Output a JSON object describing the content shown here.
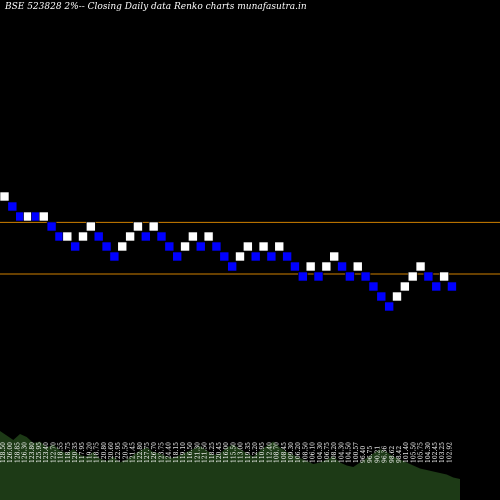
{
  "title": "BSE 523828  2%-- Closing Daily data Renko  charts munafasutra.in",
  "chart_data": {
    "type": "renko",
    "title": "BSE 523828  2%-- Closing Daily data Renko  charts munafasutra.in",
    "brick_colors": {
      "up": "#ffffff",
      "down": "#0000ff"
    },
    "reference_lines": [
      {
        "level": 120.4,
        "color": "#d08000"
      },
      {
        "level": 107.5,
        "color": "#d08000"
      }
    ],
    "bricks": [
      {
        "dir": "up",
        "level": 128.0
      },
      {
        "dir": "down",
        "level": 125.5
      },
      {
        "dir": "down",
        "level": 123.0
      },
      {
        "dir": "up",
        "level": 123.0
      },
      {
        "dir": "down",
        "level": 123.0
      },
      {
        "dir": "up",
        "level": 123.0
      },
      {
        "dir": "down",
        "level": 120.5
      },
      {
        "dir": "down",
        "level": 118.0
      },
      {
        "dir": "up",
        "level": 118.0
      },
      {
        "dir": "down",
        "level": 115.5
      },
      {
        "dir": "up",
        "level": 118.0
      },
      {
        "dir": "up",
        "level": 120.5
      },
      {
        "dir": "down",
        "level": 118.0
      },
      {
        "dir": "down",
        "level": 115.5
      },
      {
        "dir": "down",
        "level": 113.0
      },
      {
        "dir": "up",
        "level": 115.5
      },
      {
        "dir": "up",
        "level": 118.0
      },
      {
        "dir": "up",
        "level": 120.5
      },
      {
        "dir": "down",
        "level": 118.0
      },
      {
        "dir": "up",
        "level": 120.5
      },
      {
        "dir": "down",
        "level": 118.0
      },
      {
        "dir": "down",
        "level": 115.5
      },
      {
        "dir": "down",
        "level": 113.0
      },
      {
        "dir": "up",
        "level": 115.5
      },
      {
        "dir": "up",
        "level": 118.0
      },
      {
        "dir": "down",
        "level": 115.5
      },
      {
        "dir": "up",
        "level": 118.0
      },
      {
        "dir": "down",
        "level": 115.5
      },
      {
        "dir": "down",
        "level": 113.0
      },
      {
        "dir": "down",
        "level": 110.5
      },
      {
        "dir": "up",
        "level": 113.0
      },
      {
        "dir": "up",
        "level": 115.5
      },
      {
        "dir": "down",
        "level": 113.0
      },
      {
        "dir": "up",
        "level": 115.5
      },
      {
        "dir": "down",
        "level": 113.0
      },
      {
        "dir": "up",
        "level": 115.5
      },
      {
        "dir": "down",
        "level": 113.0
      },
      {
        "dir": "down",
        "level": 110.5
      },
      {
        "dir": "down",
        "level": 108.0
      },
      {
        "dir": "up",
        "level": 110.5
      },
      {
        "dir": "down",
        "level": 108.0
      },
      {
        "dir": "up",
        "level": 110.5
      },
      {
        "dir": "up",
        "level": 113.0
      },
      {
        "dir": "down",
        "level": 110.5
      },
      {
        "dir": "down",
        "level": 108.0
      },
      {
        "dir": "up",
        "level": 110.5
      },
      {
        "dir": "down",
        "level": 108.0
      },
      {
        "dir": "down",
        "level": 105.5
      },
      {
        "dir": "down",
        "level": 103.0
      },
      {
        "dir": "down",
        "level": 100.5
      },
      {
        "dir": "up",
        "level": 103.0
      },
      {
        "dir": "up",
        "level": 105.5
      },
      {
        "dir": "up",
        "level": 108.0
      },
      {
        "dir": "up",
        "level": 110.5
      },
      {
        "dir": "down",
        "level": 108.0
      },
      {
        "dir": "down",
        "level": 105.5
      },
      {
        "dir": "up",
        "level": 108.0
      },
      {
        "dir": "down",
        "level": 105.5
      }
    ],
    "x_tick_labels": [
      "128.50",
      "126.00",
      "128.85",
      "126.30",
      "123.80",
      "125.95",
      "123.40",
      "122.70",
      "118.55",
      "118.75",
      "120.35",
      "117.95",
      "119.20",
      "118.75",
      "120.80",
      "120.60",
      "122.95",
      "120.50",
      "121.45",
      "122.80",
      "127.75",
      "126.70",
      "123.75",
      "124.40",
      "118.15",
      "119.10",
      "116.50",
      "121.30",
      "121.50",
      "118.25",
      "120.45",
      "116.00",
      "115.50",
      "113.00",
      "119.35",
      "112.20",
      "110.95",
      "112.40",
      "108.70",
      "108.45",
      "109.30",
      "106.20",
      "108.50",
      "106.10",
      "104.30",
      "106.75",
      "108.20",
      "104.30",
      "104.50",
      "100.57",
      "96.40",
      "96.75",
      "90.21",
      "96.36",
      "98.62",
      "98.42",
      "101.40",
      "105.50",
      "105.75",
      "104.30",
      "102.45",
      "103.25",
      "102.92"
    ],
    "volume": {
      "color": "#1d3a16",
      "relative_levels": [
        0.92,
        0.86,
        0.8,
        0.88,
        0.84,
        0.76,
        0.78,
        0.7,
        0.74,
        0.66,
        0.62,
        0.68,
        0.6,
        0.58,
        0.64,
        0.55,
        0.52,
        0.58,
        0.5,
        0.54,
        0.6,
        0.66,
        0.7,
        0.64,
        0.62,
        0.58,
        0.56,
        0.6,
        0.64,
        0.68,
        0.72,
        0.66,
        0.6,
        0.62,
        0.7,
        0.74,
        0.68,
        0.62,
        0.58,
        0.66,
        0.72,
        0.78,
        0.7,
        0.64,
        0.6,
        0.56,
        0.52,
        0.48,
        0.5,
        0.54,
        0.58,
        0.5,
        0.46,
        0.44,
        0.5,
        0.56,
        0.62,
        0.68,
        0.64,
        0.58,
        0.54,
        0.5,
        0.46,
        0.42,
        0.4,
        0.38,
        0.36,
        0.34,
        0.3,
        0.28
      ]
    }
  }
}
